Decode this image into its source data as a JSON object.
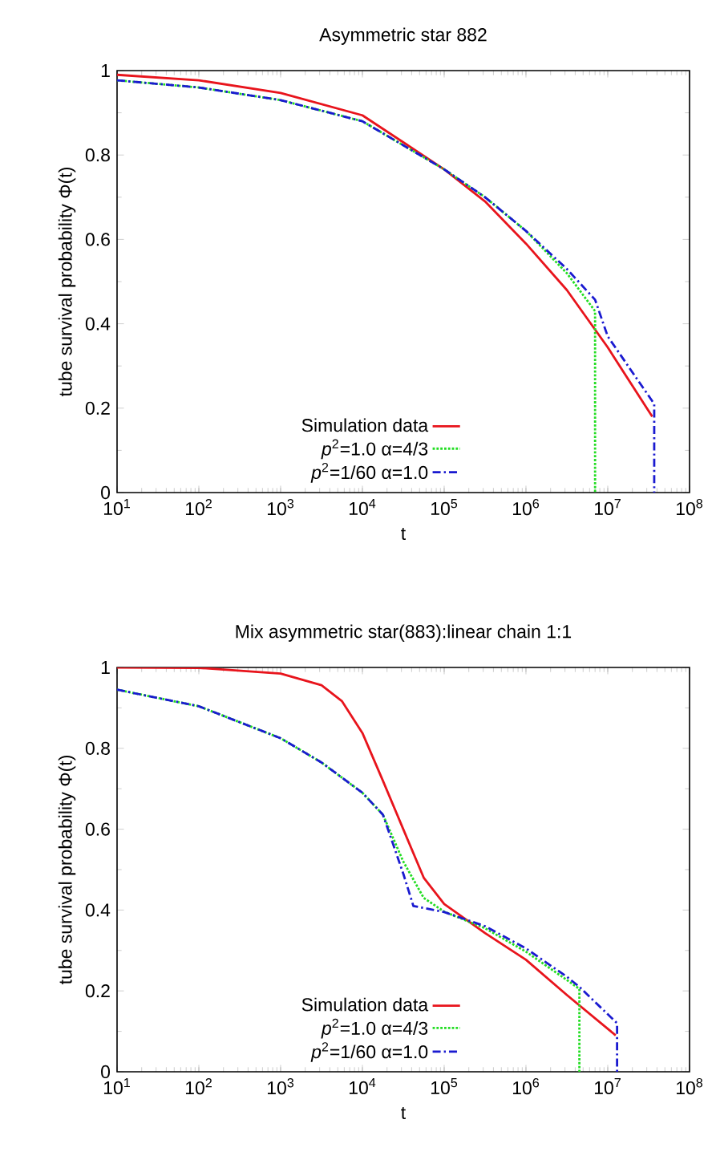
{
  "chart_data": [
    {
      "type": "line",
      "title": "Asymmetric star 882",
      "xlabel": "t",
      "ylabel": "tube survival probability Φ(t)",
      "log": "x",
      "grid": false,
      "legend": "bottom",
      "marker": "none",
      "xlim": [
        10,
        100000000
      ],
      "ylim": [
        0,
        1
      ],
      "xticks": [
        {
          "value": 10,
          "label": "10$^{1}$"
        },
        {
          "value": 100,
          "label": "10$^{2}$"
        },
        {
          "value": 1000,
          "label": "10$^{3}$"
        },
        {
          "value": 10000,
          "label": "10$^{4}$"
        },
        {
          "value": 100000,
          "label": "10$^{5}$"
        },
        {
          "value": 1000000,
          "label": "10$^{6}$"
        },
        {
          "value": 10000000,
          "label": "10$^{7}$"
        },
        {
          "value": 100000000,
          "label": "10$^{8}$"
        }
      ],
      "yticks": [
        0,
        0.2,
        0.4,
        0.6,
        0.8,
        1
      ],
      "series": [
        {
          "name": "Simulation data",
          "color": "#e8141c",
          "line_style": "solid",
          "x": [
            10,
            100,
            1000,
            10000,
            100000,
            316000,
            1000000,
            3160000,
            10000000,
            35000000
          ],
          "values": [
            0.99,
            0.977,
            0.947,
            0.894,
            0.766,
            0.69,
            0.59,
            0.48,
            0.344,
            0.18
          ]
        },
        {
          "name": "*p*$^{2}$=1.0 α=4/3",
          "color": "#22dd22",
          "line_style": "dotted",
          "x": [
            10,
            100,
            1000,
            10000,
            100000,
            316000,
            1000000,
            3160000,
            7000000,
            7000000
          ],
          "values": [
            0.977,
            0.96,
            0.93,
            0.88,
            0.766,
            0.7,
            0.62,
            0.52,
            0.43,
            0
          ]
        },
        {
          "name": "*p*$^{2}$=1/60 α=1.0",
          "color": "#1a1ad0",
          "line_style": "dashdot",
          "x": [
            10,
            100,
            1000,
            10000,
            100000,
            316000,
            1000000,
            3160000,
            7000000,
            10000000,
            37000000,
            37000000
          ],
          "values": [
            0.977,
            0.96,
            0.93,
            0.88,
            0.766,
            0.7,
            0.62,
            0.53,
            0.457,
            0.37,
            0.21,
            0
          ]
        }
      ]
    },
    {
      "type": "line",
      "title": "Mix asymmetric star(883):linear chain 1:1",
      "xlabel": "t",
      "ylabel": "tube survival probability Φ(t)",
      "log": "x",
      "grid": false,
      "legend": "bottom",
      "marker": "none",
      "xlim": [
        10,
        100000000
      ],
      "ylim": [
        0,
        1
      ],
      "xticks": [
        {
          "value": 10,
          "label": "10$^{1}$"
        },
        {
          "value": 100,
          "label": "10$^{2}$"
        },
        {
          "value": 1000,
          "label": "10$^{3}$"
        },
        {
          "value": 10000,
          "label": "10$^{4}$"
        },
        {
          "value": 100000,
          "label": "10$^{5}$"
        },
        {
          "value": 1000000,
          "label": "10$^{6}$"
        },
        {
          "value": 10000000,
          "label": "10$^{7}$"
        },
        {
          "value": 100000000,
          "label": "10$^{8}$"
        }
      ],
      "yticks": [
        0,
        0.2,
        0.4,
        0.6,
        0.8,
        1
      ],
      "series": [
        {
          "name": "Simulation data",
          "color": "#e8141c",
          "line_style": "solid",
          "x": [
            10,
            100,
            1000,
            3160,
            5600,
            10000,
            17800,
            31600,
            56200,
            100000,
            316000,
            1000000,
            3160000,
            12500000
          ],
          "values": [
            1.0,
            0.999,
            0.985,
            0.956,
            0.917,
            0.838,
            0.72,
            0.6,
            0.48,
            0.415,
            0.343,
            0.277,
            0.19,
            0.09
          ]
        },
        {
          "name": "*p*$^{2}$=1.0 α=4/3",
          "color": "#22dd22",
          "line_style": "dotted",
          "x": [
            10,
            100,
            1000,
            3160,
            10000,
            17800,
            31600,
            56200,
            100000,
            316000,
            1000000,
            3160000,
            4500000,
            4500000
          ],
          "values": [
            0.945,
            0.904,
            0.825,
            0.765,
            0.69,
            0.636,
            0.52,
            0.43,
            0.396,
            0.355,
            0.297,
            0.227,
            0.205,
            0
          ]
        },
        {
          "name": "*p*$^{2}$=1/60 α=1.0",
          "color": "#1a1ad0",
          "line_style": "dashdot",
          "x": [
            10,
            100,
            1000,
            3160,
            10000,
            17800,
            31600,
            42000,
            100000,
            316000,
            1000000,
            3160000,
            4500000,
            13000000,
            13000000
          ],
          "values": [
            0.945,
            0.904,
            0.825,
            0.765,
            0.69,
            0.636,
            0.49,
            0.41,
            0.395,
            0.36,
            0.305,
            0.235,
            0.21,
            0.12,
            0
          ]
        }
      ]
    }
  ]
}
